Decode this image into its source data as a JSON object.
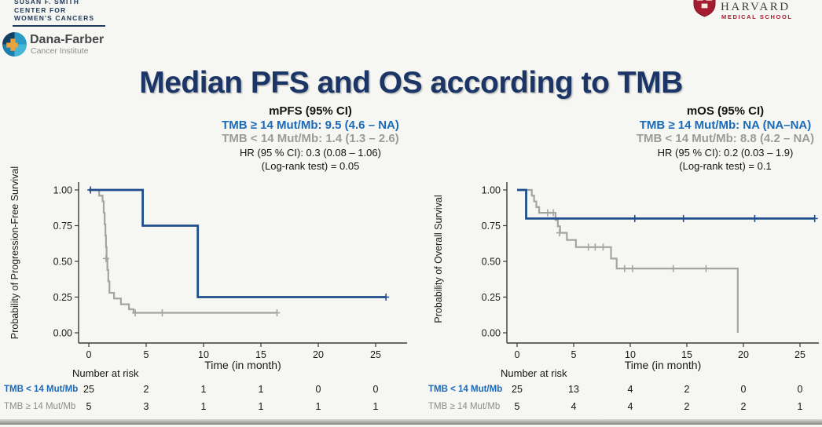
{
  "title": "Median PFS and OS according to TMB",
  "logos": {
    "susan_smith": {
      "lines": [
        "SUSAN F. SMITH",
        "CENTER FOR",
        "WOMEN'S CANCERS"
      ]
    },
    "dana_farber": {
      "name": "Dana-Farber",
      "sub": "Cancer Institute"
    },
    "harvard": {
      "name": "HARVARD",
      "sub": "MEDICAL SCHOOL"
    }
  },
  "colors": {
    "navy": "#1b3666",
    "blue": "#1a6ab8",
    "crimson": "#a51c30",
    "curve_blue": "#1f4e8c",
    "curve_gray": "#a4a4a4",
    "axis": "#3a3a3a"
  },
  "chart_data": [
    {
      "type": "line",
      "subtype": "kaplan-meier",
      "grid": false,
      "header": {
        "title": "mPFS (95% CI)",
        "group_high": "TMB ≥ 14 Mut/Mb: 9.5 (4.6 – NA)",
        "group_low": "TMB < 14 Mut/Mb: 1.4 (1.3 – 2.6)",
        "hr": "HR (95 % CI): 0.3 (0.08 – 1.06)",
        "logrank": "(Log-rank test) = 0.05"
      },
      "xlabel": "Time (in month)",
      "ylabel": "Probability of Progression-Free Survival",
      "xlim": [
        0,
        26.5
      ],
      "ylim": [
        0,
        1
      ],
      "xticks": [
        0,
        5,
        10,
        15,
        20,
        25
      ],
      "yticks": [
        "0.00",
        "0.25",
        "0.50",
        "0.75",
        "1.00"
      ],
      "series": [
        {
          "name": "TMB ≥ 14 Mut/Mb",
          "color": "curve_blue",
          "width": 2.8,
          "steps": [
            [
              0,
              1
            ],
            [
              4.7,
              0.75
            ],
            [
              9.5,
              0.25
            ],
            [
              25.9,
              0.25
            ]
          ],
          "censors": [
            [
              0.15,
              1
            ],
            [
              25.9,
              0.25
            ]
          ]
        },
        {
          "name": "TMB < 14 Mut/Mb",
          "color": "curve_gray",
          "width": 2.2,
          "steps": [
            [
              0,
              1
            ],
            [
              0.9,
              0.96
            ],
            [
              1.2,
              0.92
            ],
            [
              1.3,
              0.84
            ],
            [
              1.38,
              0.76
            ],
            [
              1.45,
              0.68
            ],
            [
              1.5,
              0.6
            ],
            [
              1.55,
              0.52
            ],
            [
              1.62,
              0.44
            ],
            [
              1.7,
              0.36
            ],
            [
              1.8,
              0.28
            ],
            [
              2.2,
              0.24
            ],
            [
              2.8,
              0.2
            ],
            [
              3.5,
              0.165
            ],
            [
              3.9,
              0.14
            ],
            [
              16.4,
              0.14
            ]
          ],
          "censors": [
            [
              1.5,
              0.52
            ],
            [
              4.05,
              0.14
            ],
            [
              6.4,
              0.14
            ],
            [
              16.4,
              0.14
            ]
          ]
        }
      ],
      "risk_table": {
        "header": "Number at risk",
        "rows": [
          {
            "label": "TMB < 14 Mut/Mb",
            "color": "blue",
            "values": [
              "25",
              "2",
              "1",
              "1",
              "0",
              "0"
            ]
          },
          {
            "label": "TMB ≥ 14 Mut/Mb",
            "color": "gray",
            "values": [
              "5",
              "3",
              "1",
              "1",
              "1",
              "1"
            ]
          }
        ]
      }
    },
    {
      "type": "line",
      "subtype": "kaplan-meier",
      "grid": false,
      "header": {
        "title": "mOS (95% CI)",
        "group_high": "TMB ≥ 14 Mut/Mb: NA (NA–NA)",
        "group_low": "TMB < 14 Mut/Mb: 8.8 (4.2 – NA)",
        "hr": "HR (95 % CI): 0.2 (0.03 – 1.9)",
        "logrank": "(Log-rank test) = 0.1"
      },
      "xlabel": "Time (in month)",
      "ylabel": "Probability of Overall Survival",
      "xlim": [
        0,
        26.5
      ],
      "ylim": [
        0,
        1
      ],
      "xticks": [
        0,
        5,
        10,
        15,
        20,
        25
      ],
      "yticks": [
        "0.00",
        "0.25",
        "0.50",
        "0.75",
        "1.00"
      ],
      "series": [
        {
          "name": "TMB ≥ 14 Mut/Mb",
          "color": "curve_blue",
          "width": 2.8,
          "steps": [
            [
              0,
              1
            ],
            [
              0.8,
              0.8
            ],
            [
              26.3,
              0.8
            ]
          ],
          "censors": [
            [
              10.4,
              0.8
            ],
            [
              14.7,
              0.8
            ],
            [
              21,
              0.8
            ],
            [
              26.3,
              0.8
            ]
          ]
        },
        {
          "name": "TMB < 14 Mut/Mb",
          "color": "curve_gray",
          "width": 2.2,
          "steps": [
            [
              0,
              1
            ],
            [
              1.3,
              0.96
            ],
            [
              1.5,
              0.92
            ],
            [
              1.7,
              0.88
            ],
            [
              1.95,
              0.84
            ],
            [
              3.4,
              0.79
            ],
            [
              3.6,
              0.745
            ],
            [
              3.8,
              0.7
            ],
            [
              4.4,
              0.65
            ],
            [
              5.2,
              0.6
            ],
            [
              8.3,
              0.52
            ],
            [
              8.8,
              0.45
            ],
            [
              19.5,
              0
            ]
          ],
          "censors": [
            [
              2.7,
              0.84
            ],
            [
              3.2,
              0.84
            ],
            [
              3.75,
              0.7
            ],
            [
              6.3,
              0.6
            ],
            [
              6.9,
              0.6
            ],
            [
              7.6,
              0.6
            ],
            [
              9.5,
              0.45
            ],
            [
              10.2,
              0.45
            ],
            [
              13.8,
              0.45
            ],
            [
              16.7,
              0.45
            ]
          ]
        }
      ],
      "risk_table": {
        "header": "Number at risk",
        "rows": [
          {
            "label": "TMB < 14 Mut/Mb",
            "color": "blue",
            "values": [
              "25",
              "13",
              "4",
              "2",
              "0",
              "0"
            ]
          },
          {
            "label": "TMB ≥ 14 Mut/Mb",
            "color": "gray",
            "values": [
              "5",
              "4",
              "4",
              "2",
              "2",
              "1"
            ]
          }
        ]
      }
    }
  ]
}
